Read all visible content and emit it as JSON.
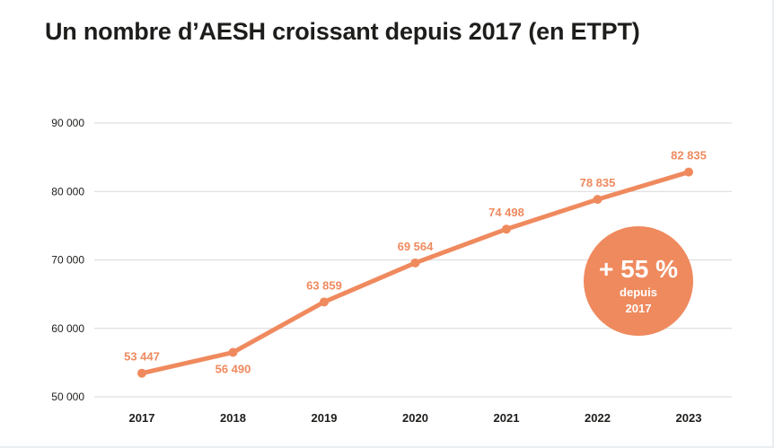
{
  "chart_data": {
    "type": "line",
    "title": "Un nombre d’AESH croissant depuis 2017 (en ETPT)",
    "xlabel": "",
    "ylabel": "",
    "categories": [
      "2017",
      "2018",
      "2019",
      "2020",
      "2021",
      "2022",
      "2023"
    ],
    "values": [
      53447,
      56490,
      63859,
      69564,
      74498,
      78835,
      82835
    ],
    "value_labels": [
      "53 447",
      "56 490",
      "63 859",
      "69 564",
      "74 498",
      "78 835",
      "82 835"
    ],
    "ylim": [
      50000,
      90000
    ],
    "yticks": [
      50000,
      60000,
      70000,
      80000,
      90000
    ],
    "ytick_labels": [
      "50 000",
      "60 000",
      "70 000",
      "80 000",
      "90 000"
    ],
    "grid": true,
    "line_color": "#ef8a5e",
    "annotation": {
      "headline": "+ 55 %",
      "line1": "depuis",
      "line2": "2017",
      "color": "#ef8a5e"
    }
  }
}
